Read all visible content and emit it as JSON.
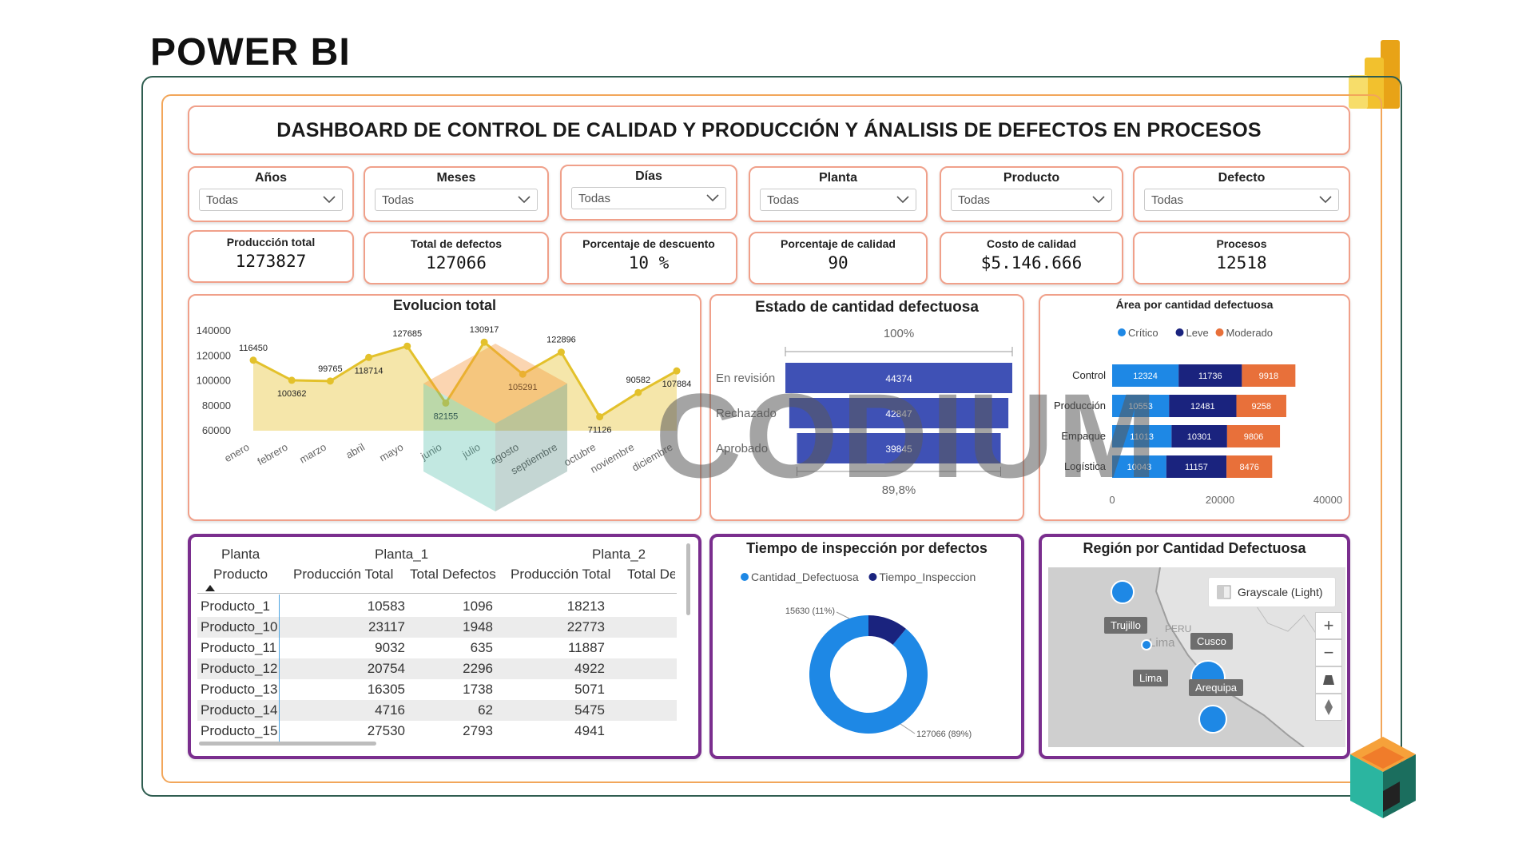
{
  "brand": "POWER BI",
  "dashboard_title": "DASHBOARD DE CONTROL DE CALIDAD Y PRODUCCIÓN Y ÁNALISIS DE DEFECTOS EN PROCESOS",
  "filters": [
    {
      "label": "Años",
      "value": "Todas"
    },
    {
      "label": "Meses",
      "value": "Todas"
    },
    {
      "label": "Días",
      "value": "Todas"
    },
    {
      "label": "Planta",
      "value": "Todas"
    },
    {
      "label": "Producto",
      "value": "Todas"
    },
    {
      "label": "Defecto",
      "value": "Todas"
    }
  ],
  "kpis": [
    {
      "label": "Producción total",
      "value": "1273827"
    },
    {
      "label": "Total de defectos",
      "value": "127066"
    },
    {
      "label": "Porcentaje de descuento",
      "value": "10 %"
    },
    {
      "label": "Porcentaje de calidad",
      "value": "90"
    },
    {
      "label": "Costo de calidad",
      "value": "$5.146.666"
    },
    {
      "label": "Procesos",
      "value": "12518"
    }
  ],
  "watermark": "CODIUM",
  "colors": {
    "accent_border": "#f0a08a",
    "purple_border": "#7a2e8e",
    "critico": "#1e88e5",
    "leve": "#1a237e",
    "moderado": "#e8703a",
    "funnel": "#3f51b5",
    "line": "#e3c12b",
    "area_fill": "#f4e3a1"
  },
  "chart_data": [
    {
      "type": "area",
      "title": "Evolucion total",
      "categories": [
        "enero",
        "febrero",
        "marzo",
        "abril",
        "mayo",
        "junio",
        "julio",
        "agosto",
        "septiembre",
        "octubre",
        "noviembre",
        "diciembre"
      ],
      "values": [
        116450,
        100362,
        99765,
        118714,
        127685,
        82155,
        130917,
        105291,
        122896,
        71126,
        90582,
        107884
      ],
      "data_labels": [
        "116450",
        "100362",
        "99765",
        "118714",
        "127685",
        "82155",
        "130917",
        "105291",
        "122896",
        "71126",
        "90582",
        "107884"
      ],
      "yticks": [
        "140000",
        "120000",
        "100000",
        "80000",
        "60000"
      ],
      "ylim": [
        60000,
        140000
      ]
    },
    {
      "type": "bar",
      "title": "Estado de cantidad defectuosa",
      "categories": [
        "En revisión",
        "Rechazado",
        "Aprobado"
      ],
      "values": [
        44374,
        42847,
        39845
      ],
      "value_labels": [
        "44374",
        "42847",
        "39845"
      ],
      "top_label": "100%",
      "bottom_label": "89,8%"
    },
    {
      "type": "bar",
      "title": "Área por cantidad defectuosa",
      "legend": [
        "Crítico",
        "Leve",
        "Moderado"
      ],
      "legend_placement": "top",
      "categories": [
        "Control",
        "Producción",
        "Empaque",
        "Logística"
      ],
      "series": [
        {
          "name": "Crítico",
          "values": [
            12324,
            10553,
            11013,
            10043
          ]
        },
        {
          "name": "Leve",
          "values": [
            11736,
            12481,
            10301,
            11157
          ]
        },
        {
          "name": "Moderado",
          "values": [
            9918,
            9258,
            9806,
            8476
          ]
        }
      ],
      "xticks": [
        "0",
        "20000",
        "40000"
      ],
      "xlim": [
        0,
        40000
      ]
    },
    {
      "type": "pie",
      "title": "Tiempo de inspección por defectos",
      "legend": [
        "Cantidad_Defectuosa",
        "Tiempo_Inspeccion"
      ],
      "series": [
        {
          "name": "Cantidad_Defectuosa",
          "values": [
            127066
          ],
          "label": "127066 (89%)"
        },
        {
          "name": "Tiempo_Inspeccion",
          "values": [
            15630
          ],
          "label": "15630 (11%)"
        }
      ]
    }
  ],
  "matrix": {
    "header_row1": [
      "Planta",
      "Planta_1",
      "Planta_2"
    ],
    "header_row2": [
      "Producto",
      "Producción Total",
      "Total Defectos",
      "Producción Total",
      "Total Defe"
    ],
    "rows": [
      {
        "product": "Producto_1",
        "p1_prod": "10583",
        "p1_def": "1096",
        "p2_prod": "18213"
      },
      {
        "product": "Producto_10",
        "p1_prod": "23117",
        "p1_def": "1948",
        "p2_prod": "22773"
      },
      {
        "product": "Producto_11",
        "p1_prod": "9032",
        "p1_def": "635",
        "p2_prod": "11887"
      },
      {
        "product": "Producto_12",
        "p1_prod": "20754",
        "p1_def": "2296",
        "p2_prod": "4922"
      },
      {
        "product": "Producto_13",
        "p1_prod": "16305",
        "p1_def": "1738",
        "p2_prod": "5071"
      },
      {
        "product": "Producto_14",
        "p1_prod": "4716",
        "p1_def": "62",
        "p2_prod": "5475"
      },
      {
        "product": "Producto_15",
        "p1_prod": "27530",
        "p1_def": "2793",
        "p2_prod": "4941"
      }
    ]
  },
  "map": {
    "title": "Región por Cantidad Defectuosa",
    "style_button": "Grayscale (Light)",
    "country_label": "PERU",
    "city_label": "Lima",
    "markers": [
      "Trujillo",
      "Lima",
      "Cusco",
      "Arequipa"
    ],
    "zoom_in": "+",
    "zoom_out": "−"
  }
}
